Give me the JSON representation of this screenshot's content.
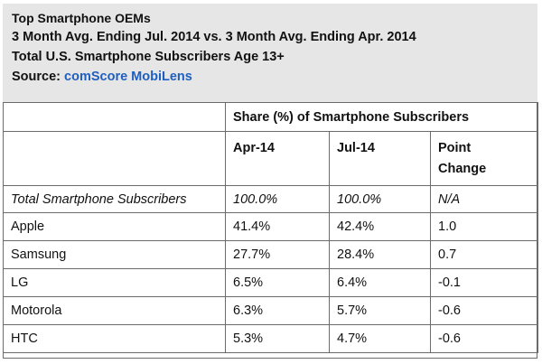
{
  "header": {
    "title": "Top Smartphone OEMs",
    "subtitle": "3 Month Avg. Ending Jul. 2014 vs. 3 Month Avg. Ending Apr. 2014",
    "subtitle2": "Total U.S. Smartphone Subscribers Age 13+",
    "source_label": "Source:",
    "source_name": "comScore MobiLens"
  },
  "table": {
    "group_header": "Share (%) of Smartphone Subscribers",
    "columns": {
      "apr": "Apr-14",
      "jul": "Jul-14",
      "change_line1": "Point",
      "change_line2": "Change"
    },
    "total": {
      "label": "Total Smartphone Subscribers",
      "apr": "100.0%",
      "jul": "100.0%",
      "change": "N/A"
    },
    "rows": [
      {
        "label": "Apple",
        "apr": "41.4%",
        "jul": "42.4%",
        "change": "1.0"
      },
      {
        "label": "Samsung",
        "apr": "27.7%",
        "jul": "28.4%",
        "change": "0.7"
      },
      {
        "label": "LG",
        "apr": "6.5%",
        "jul": "6.4%",
        "change": "-0.1"
      },
      {
        "label": "Motorola",
        "apr": "6.3%",
        "jul": "5.7%",
        "change": "-0.6"
      },
      {
        "label": "HTC",
        "apr": "5.3%",
        "jul": "4.7%",
        "change": "-0.6"
      }
    ]
  },
  "colors": {
    "header_bg": "#e6e6e6",
    "border": "#6b6b6b",
    "link": "#1f5fbf"
  },
  "chart_data": {
    "type": "table",
    "title": "Top Smartphone OEMs",
    "subtitle": "3 Month Avg. Ending Jul. 2014 vs. 3 Month Avg. Ending Apr. 2014 — Total U.S. Smartphone Subscribers Age 13+",
    "source": "comScore MobiLens",
    "categories": [
      "Total Smartphone Subscribers",
      "Apple",
      "Samsung",
      "LG",
      "Motorola",
      "HTC"
    ],
    "series": [
      {
        "name": "Apr-14",
        "values": [
          100.0,
          41.4,
          27.7,
          6.5,
          6.3,
          5.3
        ]
      },
      {
        "name": "Jul-14",
        "values": [
          100.0,
          42.4,
          28.4,
          6.4,
          5.7,
          4.7
        ]
      },
      {
        "name": "Point Change",
        "values": [
          null,
          1.0,
          0.7,
          -0.1,
          -0.6,
          -0.6
        ]
      }
    ],
    "unit": "Share (%) of Smartphone Subscribers"
  }
}
